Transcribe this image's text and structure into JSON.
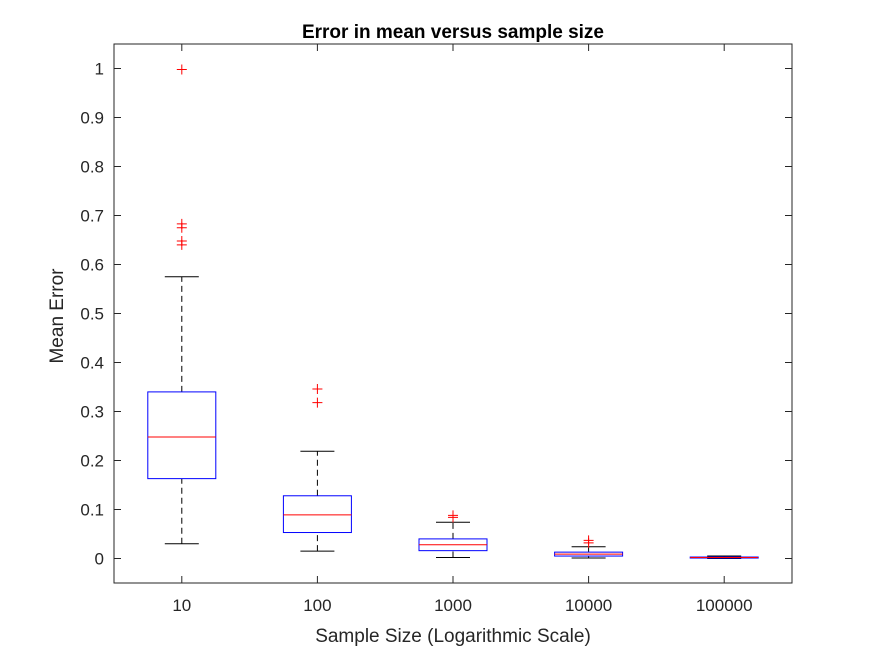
{
  "chart_data": {
    "type": "boxplot",
    "title": "Error in mean versus sample size",
    "xlabel": "Sample Size (Logarithmic Scale)",
    "ylabel": "Mean Error",
    "categories": [
      "10",
      "100",
      "1000",
      "10000",
      "100000"
    ],
    "ylim": [
      -0.05,
      1.05
    ],
    "yticks": [
      0,
      0.1,
      0.2,
      0.3,
      0.4,
      0.5,
      0.6,
      0.7,
      0.8,
      0.9,
      1
    ],
    "ytick_labels": [
      "0",
      "0.1",
      "0.2",
      "0.3",
      "0.4",
      "0.5",
      "0.6",
      "0.7",
      "0.8",
      "0.9",
      "1"
    ],
    "grid": false,
    "boxes": [
      {
        "category": "10",
        "whisker_low": 0.03,
        "q1": 0.163,
        "median": 0.248,
        "q3": 0.34,
        "whisker_high": 0.575,
        "outliers": [
          0.998,
          0.683,
          0.675,
          0.648,
          0.64
        ]
      },
      {
        "category": "100",
        "whisker_low": 0.015,
        "q1": 0.053,
        "median": 0.089,
        "q3": 0.128,
        "whisker_high": 0.219,
        "outliers": [
          0.346,
          0.318
        ]
      },
      {
        "category": "1000",
        "whisker_low": 0.002,
        "q1": 0.016,
        "median": 0.028,
        "q3": 0.04,
        "whisker_high": 0.074,
        "outliers": [
          0.088,
          0.084
        ]
      },
      {
        "category": "10000",
        "whisker_low": 0.001,
        "q1": 0.005,
        "median": 0.009,
        "q3": 0.013,
        "whisker_high": 0.024,
        "outliers": [
          0.037,
          0.032
        ]
      },
      {
        "category": "100000",
        "whisker_low": 0.0,
        "q1": 0.001,
        "median": 0.002,
        "q3": 0.003,
        "whisker_high": 0.005,
        "outliers": []
      }
    ],
    "colors": {
      "box": "#0000ff",
      "median": "#ff0000",
      "whisker": "#000000",
      "outlier": "#ff0000",
      "axis": "#262626"
    }
  }
}
